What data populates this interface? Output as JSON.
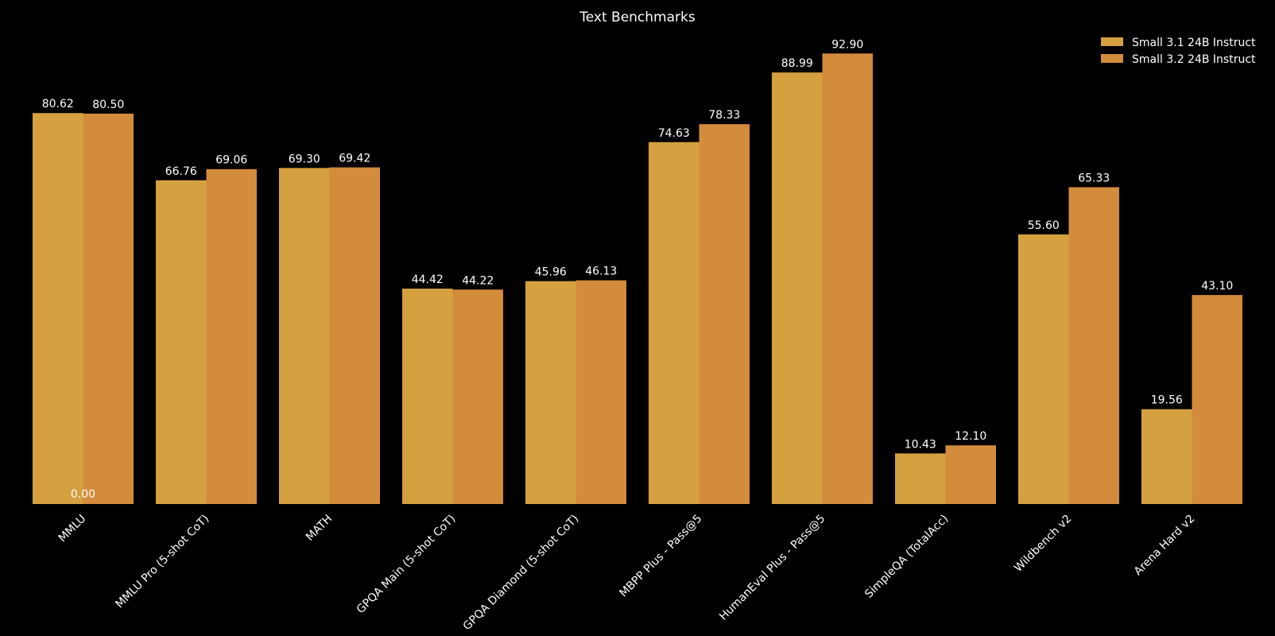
{
  "chart_data": {
    "type": "bar",
    "title": "Text Benchmarks",
    "xlabel": "",
    "ylabel": "",
    "ylim": [
      0,
      97
    ],
    "grid": false,
    "legend_position": "top-right",
    "categories": [
      "MMLU",
      "MMLU Pro (5-shot CoT)",
      "MATH",
      "GPQA Main (5-shot CoT)",
      "GPQA Diamond (5-shot CoT)",
      "MBPP Plus - Pass@5",
      "HumanEval Plus - Pass@5",
      "SimpleQA (TotalAcc)",
      "Wildbench v2",
      "Arena Hard v2"
    ],
    "series": [
      {
        "name": "Small 3.1 24B Instruct",
        "color": "#D4A040",
        "values": [
          80.62,
          66.76,
          69.3,
          44.42,
          45.96,
          74.63,
          88.99,
          10.43,
          55.6,
          19.56
        ],
        "labels": [
          "80.62",
          "66.76",
          "69.30",
          "44.42",
          "45.96",
          "74.63",
          "88.99",
          "10.43",
          "55.60",
          "19.56"
        ]
      },
      {
        "name": "Small 3.2 24B Instruct",
        "color": "#D38B3C",
        "values": [
          80.5,
          69.06,
          69.42,
          44.22,
          46.13,
          78.33,
          92.9,
          12.1,
          65.33,
          43.1
        ],
        "labels": [
          "80.50",
          "69.06",
          "69.42",
          "44.22",
          "46.13",
          "78.33",
          "92.90",
          "12.10",
          "65.33",
          "43.10"
        ]
      }
    ],
    "annotations": [
      {
        "text": "0.00",
        "category_index": 0,
        "value": 0
      }
    ]
  }
}
